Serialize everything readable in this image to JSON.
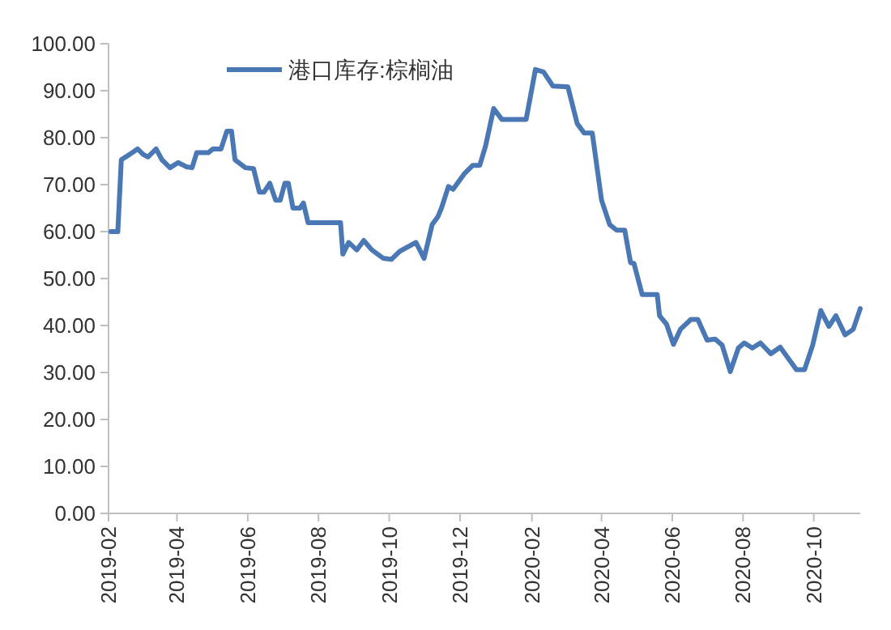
{
  "chart_data": {
    "type": "line",
    "legend": "top",
    "grid": false,
    "marker": "none",
    "line_style": "solid",
    "xlim": [
      "2019-02-01",
      "2020-11-10"
    ],
    "xticks": [
      "2019-02",
      "2019-04",
      "2019-06",
      "2019-08",
      "2019-10",
      "2019-12",
      "2020-02",
      "2020-04",
      "2020-06",
      "2020-08",
      "2020-10"
    ],
    "ylim": [
      0,
      100
    ],
    "yticks": [
      {
        "value": 0,
        "label": "0.00"
      },
      {
        "value": 10,
        "label": "10.00"
      },
      {
        "value": 20,
        "label": "20.00"
      },
      {
        "value": 30,
        "label": "30.00"
      },
      {
        "value": 40,
        "label": "40.00"
      },
      {
        "value": 50,
        "label": "50.00"
      },
      {
        "value": 60,
        "label": "60.00"
      },
      {
        "value": 70,
        "label": "70.00"
      },
      {
        "value": 80,
        "label": "80.00"
      },
      {
        "value": 90,
        "label": "90.00"
      },
      {
        "value": 100,
        "label": "100.00"
      }
    ],
    "series": [
      {
        "name": "港口库存:棕榈油",
        "color": "#4a78b5",
        "x": [
          "2019-02-03",
          "2019-02-09",
          "2019-02-12",
          "2019-02-19",
          "2019-02-26",
          "2019-03-03",
          "2019-03-07",
          "2019-03-14",
          "2019-03-19",
          "2019-03-26",
          "2019-04-02",
          "2019-04-09",
          "2019-04-14",
          "2019-04-18",
          "2019-04-28",
          "2019-05-02",
          "2019-05-09",
          "2019-05-14",
          "2019-05-18",
          "2019-05-21",
          "2019-05-30",
          "2019-06-06",
          "2019-06-11",
          "2019-06-15",
          "2019-06-20",
          "2019-06-25",
          "2019-06-29",
          "2019-07-03",
          "2019-07-06",
          "2019-07-10",
          "2019-07-16",
          "2019-07-19",
          "2019-07-23",
          "2019-08-20",
          "2019-08-22",
          "2019-08-27",
          "2019-09-03",
          "2019-09-09",
          "2019-09-16",
          "2019-09-26",
          "2019-10-03",
          "2019-10-10",
          "2019-10-24",
          "2019-10-31",
          "2019-11-07",
          "2019-11-12",
          "2019-11-15",
          "2019-11-21",
          "2019-11-25",
          "2019-12-05",
          "2019-12-12",
          "2019-12-18",
          "2019-12-23",
          "2019-12-30",
          "2020-01-06",
          "2020-01-27",
          "2020-02-04",
          "2020-02-11",
          "2020-02-19",
          "2020-03-03",
          "2020-03-11",
          "2020-03-17",
          "2020-03-24",
          "2020-04-01",
          "2020-04-08",
          "2020-04-14",
          "2020-04-21",
          "2020-04-26",
          "2020-04-29",
          "2020-05-06",
          "2020-05-19",
          "2020-05-21",
          "2020-05-27",
          "2020-06-02",
          "2020-06-08",
          "2020-06-17",
          "2020-06-23",
          "2020-07-01",
          "2020-07-08",
          "2020-07-14",
          "2020-07-21",
          "2020-07-28",
          "2020-08-02",
          "2020-08-09",
          "2020-08-16",
          "2020-08-25",
          "2020-09-02",
          "2020-09-16",
          "2020-09-23",
          "2020-09-30",
          "2020-10-07",
          "2020-10-14",
          "2020-10-20",
          "2020-10-28",
          "2020-11-04",
          "2020-11-10"
        ],
        "values": [
          60,
          60,
          75.3,
          76.4,
          77.6,
          76.4,
          75.9,
          77.6,
          75.3,
          73.6,
          74.7,
          73.8,
          73.6,
          76.8,
          76.8,
          77.6,
          77.6,
          81.4,
          81.4,
          75.3,
          73.6,
          73.4,
          68.4,
          68.4,
          70.3,
          66.7,
          66.7,
          70.3,
          70.3,
          65,
          65,
          66.1,
          61.9,
          61.9,
          55.2,
          57.7,
          56.1,
          58.1,
          56.1,
          54.3,
          54.1,
          55.8,
          57.7,
          54.3,
          61.5,
          63.2,
          65,
          69.6,
          69,
          72.4,
          74.1,
          74.1,
          78.2,
          86.2,
          83.9,
          83.9,
          94.5,
          94,
          91,
          90.8,
          83,
          81,
          81,
          66.7,
          61.5,
          60.3,
          60.3,
          53.4,
          53.2,
          46.6,
          46.6,
          42.1,
          40.3,
          36,
          39.2,
          41.3,
          41.3,
          36.9,
          37.1,
          35.8,
          30.2,
          35.2,
          36.3,
          35.2,
          36.3,
          34,
          35.4,
          30.6,
          30.6,
          35.8,
          43.2,
          39.8,
          42.1,
          38,
          39.2,
          43.6
        ]
      }
    ]
  }
}
